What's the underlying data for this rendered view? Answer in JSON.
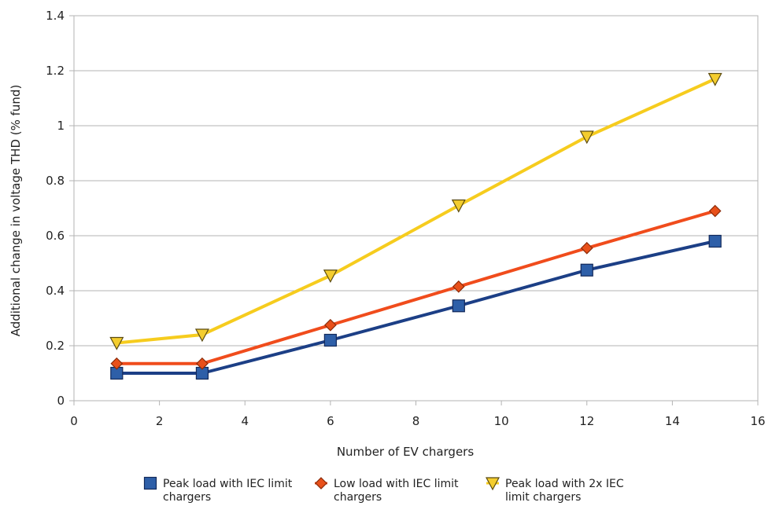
{
  "chart_data": {
    "type": "line",
    "title": "",
    "xlabel": "Number of EV chargers",
    "ylabel": "Additional change in voltage THD (% fund)",
    "xlim": [
      0,
      16
    ],
    "ylim": [
      0,
      1.4
    ],
    "xticks": [
      "0",
      "2",
      "4",
      "6",
      "8",
      "10",
      "12",
      "14",
      "16"
    ],
    "yticks": [
      "0",
      "0.2",
      "0.4",
      "0.6",
      "0.8",
      "1",
      "1.2",
      "1.4"
    ],
    "grid": "horizontal",
    "legend_position": "bottom",
    "x": [
      1,
      3,
      6,
      9,
      12,
      15
    ],
    "series": [
      {
        "name_lines": [
          "Peak load with IEC limit",
          "chargers"
        ],
        "values": [
          0.1,
          0.1,
          0.22,
          0.345,
          0.475,
          0.58
        ],
        "line_color": "#1c3f86",
        "marker": "square",
        "marker_fill": "#2e5fa8",
        "marker_stroke": "#13295a"
      },
      {
        "name_lines": [
          "Low load with IEC limit",
          "chargers"
        ],
        "values": [
          0.135,
          0.135,
          0.275,
          0.415,
          0.555,
          0.69
        ],
        "line_color": "#f04c1c",
        "marker": "diamond",
        "marker_fill": "#e8501a",
        "marker_stroke": "#8a2a08"
      },
      {
        "name_lines": [
          "Peak load with 2x IEC",
          "limit chargers"
        ],
        "values": [
          0.21,
          0.24,
          0.455,
          0.71,
          0.96,
          1.17
        ],
        "line_color": "#f6cc1e",
        "marker": "triangle-down",
        "marker_fill": "#f4cd2e",
        "marker_stroke": "#5a4a10"
      }
    ]
  }
}
